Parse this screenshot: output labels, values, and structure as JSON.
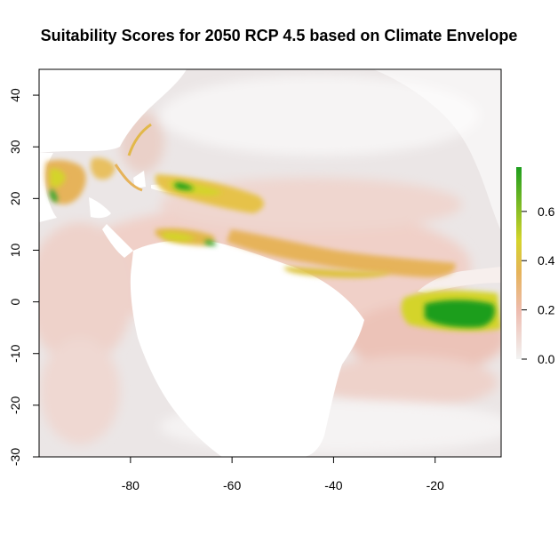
{
  "title": "Suitability Scores for 2050 RCP 4.5 based on Climate Envelope",
  "map": {
    "x_range": [
      -98,
      -7
    ],
    "y_range": [
      -30,
      45
    ],
    "x_ticks": [
      "-80",
      "-60",
      "-40",
      "-20"
    ],
    "y_ticks": [
      "-30",
      "-20",
      "-10",
      "0",
      "10",
      "20",
      "30",
      "40"
    ],
    "background_land": "#ffffff",
    "ocean_base": "#ebe6e6",
    "colors": {
      "low": "#f2f2f2",
      "pink": "#eebcb0",
      "orange": "#e6b35a",
      "yellow": "#d4d42a",
      "green": "#1e9e1e"
    }
  },
  "legend": {
    "ticks": [
      "0.0",
      "0.2",
      "0.4",
      "0.6"
    ],
    "min": 0,
    "max": 0.78
  }
}
